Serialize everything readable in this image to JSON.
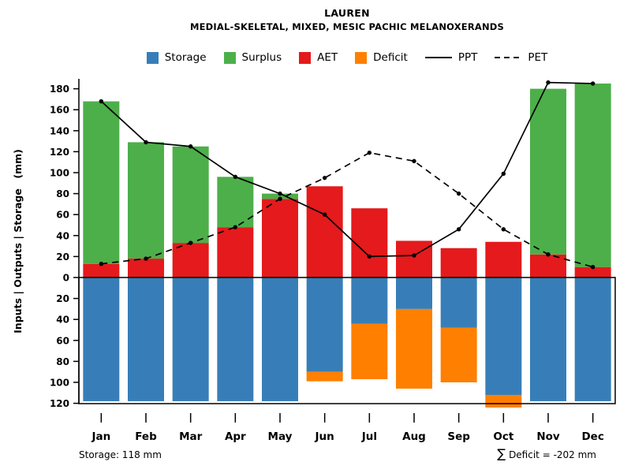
{
  "chart_data": {
    "type": "bar",
    "title": "LAUREN",
    "subtitle": "MEDIAL-SKELETAL, MIXED, MESIC PACHIC MELANOXERANDS",
    "ylabel": "Inputs | Outputs | Storage  (mm)",
    "categories": [
      "Jan",
      "Feb",
      "Mar",
      "Apr",
      "May",
      "Jun",
      "Jul",
      "Aug",
      "Sep",
      "Oct",
      "Nov",
      "Dec"
    ],
    "series": [
      {
        "name": "AET",
        "kind": "bar-up",
        "color": "#e41a1c",
        "values": [
          13,
          18,
          33,
          48,
          75,
          87,
          66,
          35,
          28,
          34,
          22,
          10
        ]
      },
      {
        "name": "Surplus",
        "kind": "bar-up-stacked",
        "color": "#4daf4a",
        "values": [
          155,
          111,
          92,
          48,
          5,
          0,
          0,
          0,
          0,
          0,
          158,
          175
        ]
      },
      {
        "name": "Storage",
        "kind": "bar-down",
        "color": "#377eb8",
        "values": [
          118,
          118,
          118,
          118,
          118,
          90,
          44,
          30,
          48,
          112,
          118,
          118
        ]
      },
      {
        "name": "Deficit",
        "kind": "bar-down-stacked",
        "color": "#ff7f00",
        "values": [
          0,
          0,
          0,
          0,
          0,
          -9,
          -53,
          -76,
          -52,
          -12,
          0,
          0
        ]
      },
      {
        "name": "PPT",
        "kind": "line",
        "linestyle": "solid",
        "color": "#000000",
        "values": [
          168,
          129,
          125,
          96,
          80,
          60,
          20,
          21,
          46,
          99,
          186,
          185
        ]
      },
      {
        "name": "PET",
        "kind": "line",
        "linestyle": "dashed",
        "color": "#000000",
        "values": [
          13,
          18,
          33,
          48,
          75,
          95,
          119,
          111,
          80,
          46,
          22,
          10
        ]
      }
    ],
    "y_axis": {
      "upper_ticks": [
        0,
        20,
        40,
        60,
        80,
        100,
        120,
        140,
        160,
        180
      ],
      "lower_ticks": [
        20,
        40,
        60,
        80,
        100,
        120
      ],
      "upper_range": [
        0,
        190
      ],
      "lower_range": [
        0,
        120
      ],
      "lower_direction": "down"
    },
    "grid": false,
    "legend_position": "top",
    "legend": [
      {
        "label": "Storage",
        "type": "swatch",
        "color": "#377eb8"
      },
      {
        "label": "Surplus",
        "type": "swatch",
        "color": "#4daf4a"
      },
      {
        "label": "AET",
        "type": "swatch",
        "color": "#e41a1c"
      },
      {
        "label": "Deficit",
        "type": "swatch",
        "color": "#ff7f00"
      },
      {
        "label": "PPT",
        "type": "line-solid",
        "color": "#000000"
      },
      {
        "label": "PET",
        "type": "line-dashed",
        "color": "#000000"
      }
    ],
    "annotations": {
      "storage_note": "Storage: 118 mm",
      "deficit_sigma": "∑",
      "deficit_note": "Deficit = -202 mm"
    }
  }
}
